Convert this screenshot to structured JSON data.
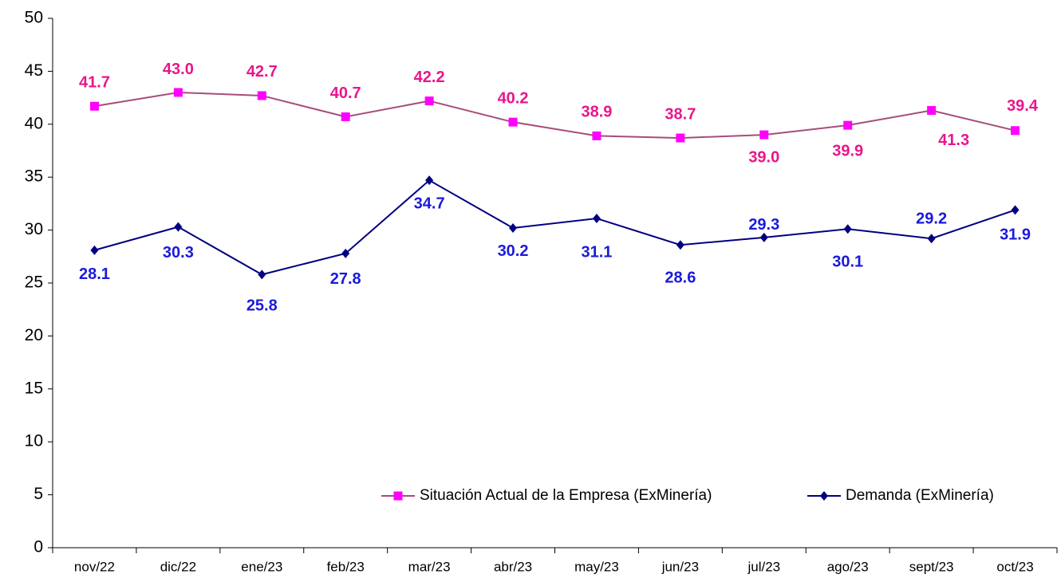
{
  "chart_data": {
    "type": "line",
    "categories": [
      "nov/22",
      "dic/22",
      "ene/23",
      "feb/23",
      "mar/23",
      "abr/23",
      "may/23",
      "jun/23",
      "jul/23",
      "ago/23",
      "sept/23",
      "oct/23"
    ],
    "series": [
      {
        "name": "Situación Actual de la Empresa (ExMinería)",
        "color": "#a64d79",
        "marker_color": "#ff00ff",
        "label_color": "#e8168c",
        "marker": "square",
        "values": [
          41.7,
          43.0,
          42.7,
          40.7,
          42.2,
          40.2,
          38.9,
          38.7,
          39.0,
          39.9,
          41.3,
          39.4
        ],
        "value_labels": [
          "41.7",
          "43.0",
          "42.7",
          "40.7",
          "42.2",
          "40.2",
          "38.9",
          "38.7",
          "39.0",
          "39.9",
          "41.3",
          "39.4"
        ]
      },
      {
        "name": "Demanda (ExMinería)",
        "color": "#000080",
        "marker_color": "#000080",
        "label_color": "#1a1adb",
        "marker": "diamond",
        "values": [
          28.1,
          30.3,
          25.8,
          27.8,
          34.7,
          30.2,
          31.1,
          28.6,
          29.3,
          30.1,
          29.2,
          31.9
        ],
        "value_labels": [
          "28.1",
          "30.3",
          "25.8",
          "27.8",
          "34.7",
          "30.2",
          "31.1",
          "28.6",
          "29.3",
          "30.1",
          "29.2",
          "31.9"
        ]
      }
    ],
    "ylim": [
      0,
      50
    ],
    "yticks": [
      0,
      5,
      10,
      15,
      20,
      25,
      30,
      35,
      40,
      45,
      50
    ],
    "grid": false,
    "legend": "lower right"
  }
}
